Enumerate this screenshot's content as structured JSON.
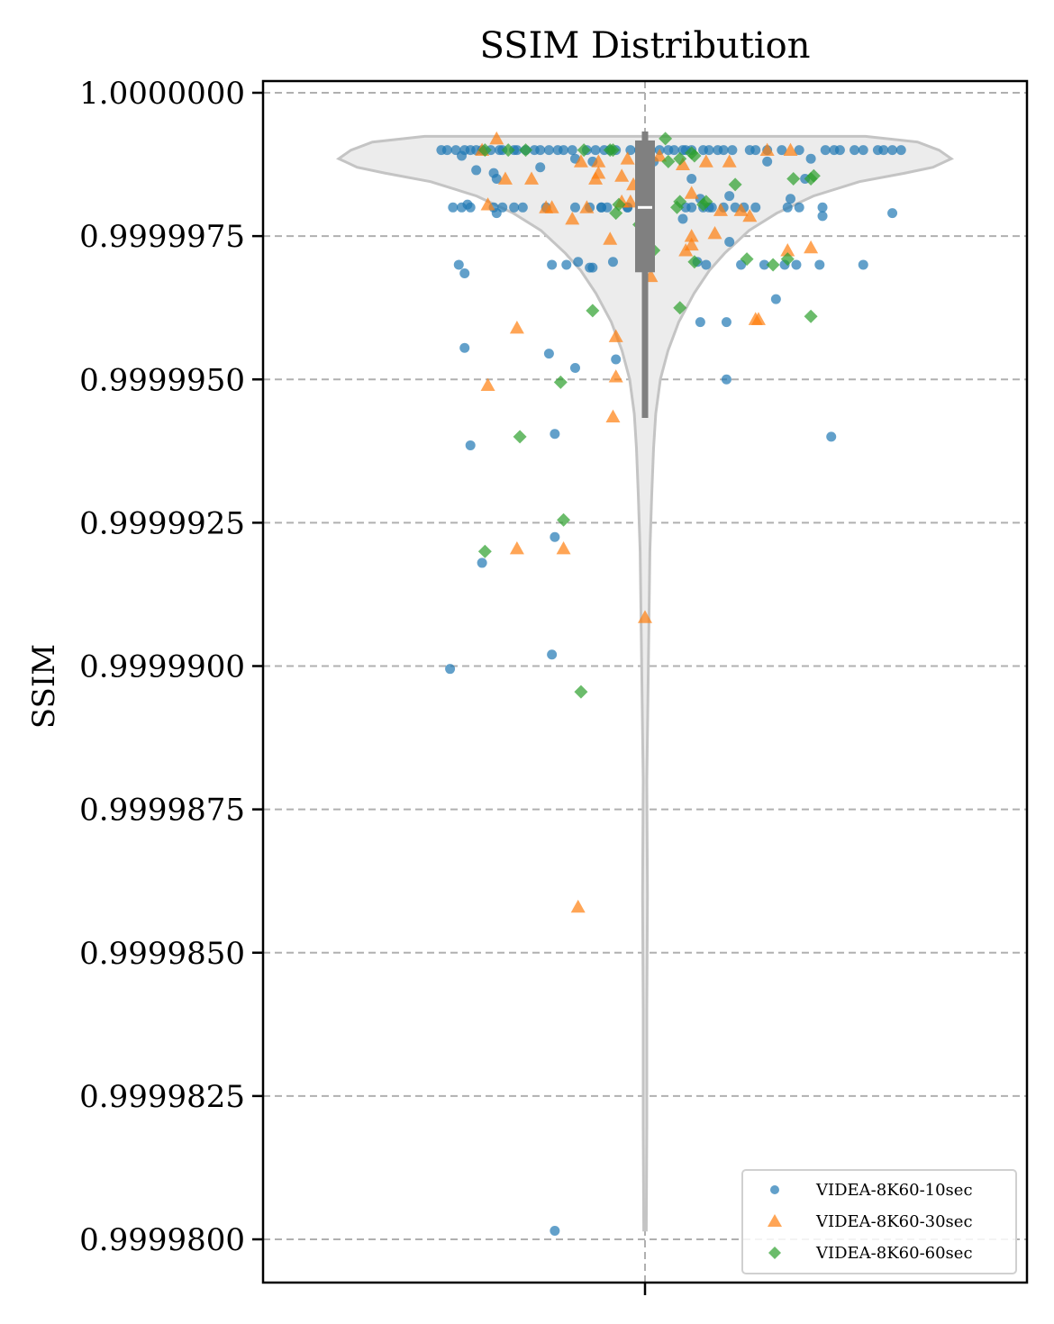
{
  "chart_data": {
    "type": "scatter",
    "title": "SSIM Distribution",
    "xlabel": "",
    "ylabel": "SSIM",
    "ylim": [
      0.9999793,
      1.0000002
    ],
    "yticks": [
      {
        "value": 1.0,
        "label": "1.0000000"
      },
      {
        "value": 0.9999975,
        "label": "0.9999975"
      },
      {
        "value": 0.999995,
        "label": "0.9999950"
      },
      {
        "value": 0.9999925,
        "label": "0.9999925"
      },
      {
        "value": 0.99999,
        "label": "0.9999900"
      },
      {
        "value": 0.9999875,
        "label": "0.9999875"
      },
      {
        "value": 0.999985,
        "label": "0.9999850"
      },
      {
        "value": 0.9999825,
        "label": "0.9999825"
      },
      {
        "value": 0.99998,
        "label": "0.9999800"
      }
    ],
    "grid": true,
    "legend_position": "bottom-right",
    "violin": {
      "color": "#ececec",
      "edge_color": "#c4c4c4",
      "box_color": "#808080",
      "q1": 0.999996869,
      "q3": 0.999999168,
      "median": 0.999998,
      "whisker_low": 0.999994328,
      "whisker_high": 0.999999324,
      "min": 0.999980161,
      "max": 0.999999242,
      "profile": [
        [
          0.99999924,
          0.72
        ],
        [
          0.99999914,
          0.89
        ],
        [
          0.999999,
          0.96
        ],
        [
          0.99999885,
          1.0
        ],
        [
          0.9999987,
          0.94
        ],
        [
          0.9999986,
          0.85
        ],
        [
          0.99999845,
          0.7
        ],
        [
          0.9999982,
          0.55
        ],
        [
          0.9999979,
          0.43
        ],
        [
          0.9999976,
          0.34
        ],
        [
          0.9999972,
          0.26
        ],
        [
          0.9999969,
          0.21
        ],
        [
          0.9999965,
          0.16
        ],
        [
          0.999996,
          0.11
        ],
        [
          0.9999955,
          0.075
        ],
        [
          0.999995,
          0.05
        ],
        [
          0.9999944,
          0.035
        ],
        [
          0.9999938,
          0.028
        ],
        [
          0.999993,
          0.022
        ],
        [
          0.999992,
          0.016
        ],
        [
          0.99999,
          0.011
        ],
        [
          0.999988,
          0.006
        ],
        [
          0.999986,
          0.008
        ],
        [
          0.999984,
          0.006
        ],
        [
          0.999982,
          0.006
        ],
        [
          0.99998016,
          0.004
        ]
      ]
    },
    "series": [
      {
        "name": "VIDEA-8K60-10sec",
        "color": "#1f77b4",
        "marker": "circle",
        "x": [
          -0.7,
          -0.68,
          -0.65,
          -0.62,
          -0.6,
          -0.58,
          -0.56,
          -0.53,
          -0.5,
          -0.49,
          -0.45,
          -0.44,
          -0.41,
          -0.38,
          -0.36,
          -0.33,
          -0.3,
          -0.28,
          -0.25,
          -0.2,
          -0.17,
          -0.14,
          -0.12,
          -0.1,
          -0.05,
          -0.02,
          0.02,
          0.05,
          0.08,
          0.1,
          0.13,
          0.14,
          0.16,
          0.2,
          0.22,
          0.25,
          0.27,
          0.3,
          0.36,
          0.38,
          0.42,
          0.47,
          0.53,
          0.62,
          0.65,
          0.67,
          0.72,
          0.75,
          0.8,
          0.82,
          0.85,
          0.88,
          -0.66,
          -0.63,
          -0.6,
          -0.52,
          -0.49,
          -0.45,
          -0.42,
          -0.34,
          -0.24,
          -0.19,
          -0.15,
          -0.15,
          -0.06,
          0.14,
          0.16,
          0.2,
          0.22,
          0.27,
          0.31,
          0.34,
          0.38,
          0.49,
          0.53,
          0.61,
          -0.63,
          -0.61,
          -0.58,
          -0.52,
          -0.51,
          -0.51,
          -0.36,
          -0.24,
          -0.18,
          -0.13,
          0.03,
          0.16,
          0.19,
          0.23,
          0.29,
          0.42,
          0.5,
          0.55,
          0.57,
          0.61,
          0.85,
          -0.64,
          -0.62,
          -0.32,
          -0.27,
          -0.23,
          -0.19,
          -0.18,
          -0.11,
          -0.06,
          0.13,
          0.18,
          0.21,
          0.29,
          0.33,
          0.41,
          0.48,
          0.52,
          0.6,
          0.75,
          -0.62,
          -0.33,
          -0.24,
          -0.1,
          0.19,
          0.28,
          -0.6,
          -0.31,
          0.28,
          0.45,
          0.64,
          -0.56,
          -0.31,
          -0.67,
          -0.32,
          -0.31
        ],
        "y": [
          0.999999,
          0.999999,
          0.999999,
          0.999999,
          0.999999,
          0.999999,
          0.999999,
          0.999999,
          0.999999,
          0.999999,
          0.999999,
          0.999999,
          0.999999,
          0.999999,
          0.999999,
          0.999999,
          0.999999,
          0.999999,
          0.999999,
          0.999999,
          0.999999,
          0.999999,
          0.999999,
          0.999999,
          0.999999,
          0.999999,
          0.999999,
          0.999999,
          0.999999,
          0.999999,
          0.999999,
          0.999999,
          0.999999,
          0.999999,
          0.999999,
          0.999999,
          0.999999,
          0.999999,
          0.999999,
          0.999999,
          0.999999,
          0.999999,
          0.999999,
          0.999999,
          0.999999,
          0.999999,
          0.999999,
          0.999999,
          0.999999,
          0.999999,
          0.999999,
          0.999999,
          0.999998,
          0.999998,
          0.999998,
          0.999998,
          0.999998,
          0.999998,
          0.999998,
          0.999998,
          0.999998,
          0.999998,
          0.999998,
          0.999998,
          0.999998,
          0.999998,
          0.999998,
          0.999998,
          0.999998,
          0.999998,
          0.999998,
          0.999998,
          0.999998,
          0.999998,
          0.999998,
          0.999998,
          0.9999989,
          0.99999805,
          0.99999865,
          0.9999986,
          0.9999985,
          0.9999979,
          0.9999987,
          0.99999885,
          0.9999988,
          0.999998,
          0.9999988,
          0.9999985,
          0.99999815,
          0.999998,
          0.9999982,
          0.9999988,
          0.99999815,
          0.9999985,
          0.99999885,
          0.99999785,
          0.9999979,
          0.999997,
          0.99999685,
          0.999997,
          0.999997,
          0.99999705,
          0.99999695,
          0.99999695,
          0.99999705,
          0.999998,
          0.9999978,
          0.99999705,
          0.999997,
          0.9999974,
          0.999997,
          0.999997,
          0.999997,
          0.999997,
          0.999997,
          0.999997,
          0.99999555,
          0.99999545,
          0.9999952,
          0.99999535,
          0.999996,
          0.999996,
          0.99999385,
          0.99999405,
          0.999995,
          0.9999964,
          0.999994,
          0.9999918,
          0.99999225,
          0.99998995,
          0.9999902,
          0.99998015
        ],
        "values_note_hidden": ""
      },
      {
        "name": "VIDEA-8K60-30sec",
        "color": "#ff7f0e",
        "marker": "triangle",
        "x": [
          -0.56,
          -0.54,
          -0.48,
          -0.39,
          -0.34,
          -0.32,
          -0.25,
          -0.22,
          -0.17,
          -0.16,
          -0.16,
          -0.12,
          -0.08,
          -0.08,
          -0.06,
          -0.05,
          -0.04,
          0.01,
          0.02,
          0.13,
          0.14,
          0.16,
          0.16,
          0.16,
          0.21,
          0.24,
          0.26,
          0.29,
          0.33,
          0.36,
          0.38,
          0.42,
          0.49,
          0.5,
          0.57,
          -0.54,
          -0.51,
          -0.44,
          -0.23,
          -0.1,
          -0.11,
          -0.1,
          0.39,
          0.05,
          0.0,
          -0.44,
          -0.28,
          -0.2
        ],
        "y": [
          0.999999,
          0.99999805,
          0.9999985,
          0.9999985,
          0.999998,
          0.999998,
          0.9999978,
          0.9999988,
          0.9999985,
          0.9999986,
          0.9999988,
          0.99999745,
          0.9999981,
          0.99999855,
          0.99999885,
          0.9999981,
          0.9999984,
          0.999999,
          0.9999968,
          0.99999875,
          0.99999725,
          0.99999735,
          0.9999975,
          0.99999825,
          0.9999988,
          0.99999755,
          0.99999795,
          0.9999988,
          0.99999795,
          0.99999785,
          0.99999605,
          0.999999,
          0.99999725,
          0.999999,
          0.9999973,
          0.9999949,
          0.9999992,
          0.9999959,
          0.9999858,
          0.99999505,
          0.99999435,
          0.99999575,
          0.99999605,
          0.9999989,
          0.99999085,
          0.99999205,
          0.99999205,
          0.999998
        ],
        "values_note_hidden": ""
      },
      {
        "name": "VIDEA-8K60-60sec",
        "color": "#2ca02c",
        "marker": "diamond",
        "x": [
          -0.55,
          -0.47,
          -0.41,
          -0.21,
          -0.12,
          -0.11,
          -0.1,
          -0.09,
          0.03,
          0.07,
          0.08,
          0.11,
          0.12,
          0.12,
          0.16,
          0.17,
          0.2,
          0.21,
          0.31,
          0.35,
          0.44,
          0.49,
          0.51,
          0.57,
          0.58,
          -0.18,
          0.12,
          0.57,
          -0.43,
          -0.29,
          -0.28,
          -0.55,
          -0.22,
          0.17,
          -0.02
        ],
        "y": [
          0.999999,
          0.999999,
          0.999999,
          0.999999,
          0.999999,
          0.999999,
          0.9999979,
          0.99999805,
          0.99999725,
          0.9999992,
          0.9999988,
          0.999998,
          0.99999885,
          0.9999981,
          0.99999895,
          0.9999989,
          0.99999805,
          0.9999981,
          0.9999984,
          0.9999971,
          0.999997,
          0.9999971,
          0.9999985,
          0.9999985,
          0.99999855,
          0.9999962,
          0.99999625,
          0.9999961,
          0.999994,
          0.99999495,
          0.99999255,
          0.999992,
          0.99998955,
          0.99999705,
          0.9999977
        ],
        "values_note_hidden": ""
      }
    ]
  }
}
